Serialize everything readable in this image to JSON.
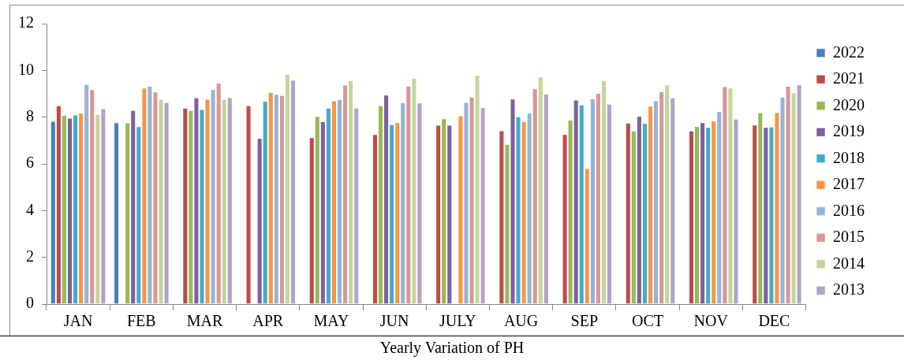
{
  "chart_data": {
    "type": "bar",
    "title": "Yearly Variation of PH",
    "categories": [
      "JAN",
      "FEB",
      "MAR",
      "APR",
      "MAY",
      "JUN",
      "JULY",
      "AUG",
      "SEP",
      "OCT",
      "NOV",
      "DEC"
    ],
    "series": [
      {
        "name": "2022",
        "color": "#4a7ebb",
        "values": [
          7.84,
          7.78,
          null,
          null,
          null,
          null,
          null,
          null,
          null,
          null,
          null,
          null
        ]
      },
      {
        "name": "2021",
        "color": "#be4b48",
        "values": [
          8.5,
          null,
          8.39,
          8.5,
          7.14,
          7.27,
          7.67,
          7.43,
          7.27,
          7.76,
          7.42,
          7.68
        ]
      },
      {
        "name": "2020",
        "color": "#98b954",
        "values": [
          8.09,
          7.77,
          8.3,
          null,
          8.05,
          8.5,
          7.95,
          6.85,
          7.89,
          7.42,
          7.62,
          8.21
        ]
      },
      {
        "name": "2019",
        "color": "#7d60a0",
        "values": [
          7.97,
          8.3,
          8.84,
          7.1,
          7.82,
          8.96,
          7.67,
          8.79,
          8.75,
          8.05,
          7.78,
          7.58
        ]
      },
      {
        "name": "2018",
        "color": "#46aac5",
        "values": [
          8.11,
          7.61,
          8.34,
          8.7,
          8.4,
          7.69,
          null,
          8.03,
          8.54,
          7.75,
          7.58,
          7.59
        ]
      },
      {
        "name": "2017",
        "color": "#f79646",
        "values": [
          8.18,
          9.26,
          8.78,
          9.08,
          8.71,
          7.78,
          8.07,
          7.83,
          5.82,
          8.49,
          7.85,
          8.22
        ]
      },
      {
        "name": "2016",
        "color": "#95b3d7",
        "values": [
          9.41,
          9.34,
          9.19,
          8.99,
          8.77,
          8.63,
          8.65,
          8.18,
          8.8,
          8.71,
          8.25,
          8.87
        ]
      },
      {
        "name": "2015",
        "color": "#d99694",
        "values": [
          9.19,
          9.09,
          9.47,
          8.94,
          9.39,
          9.34,
          8.87,
          9.23,
          9.03,
          9.1,
          9.32,
          9.34
        ]
      },
      {
        "name": "2014",
        "color": "#c3d69b",
        "values": [
          8.13,
          8.78,
          8.78,
          9.84,
          9.57,
          9.68,
          9.81,
          9.73,
          9.58,
          9.4,
          9.26,
          9.06
        ]
      },
      {
        "name": "2013",
        "color": "#b3a2c7",
        "values": [
          8.38,
          8.64,
          8.85,
          9.6,
          8.4,
          8.62,
          8.42,
          9.0,
          8.57,
          8.84,
          7.93,
          9.4
        ]
      }
    ],
    "ylim": [
      0,
      12
    ],
    "yticks": [
      0,
      2,
      4,
      6,
      8,
      10,
      12
    ],
    "grid": false,
    "legend": "right"
  }
}
